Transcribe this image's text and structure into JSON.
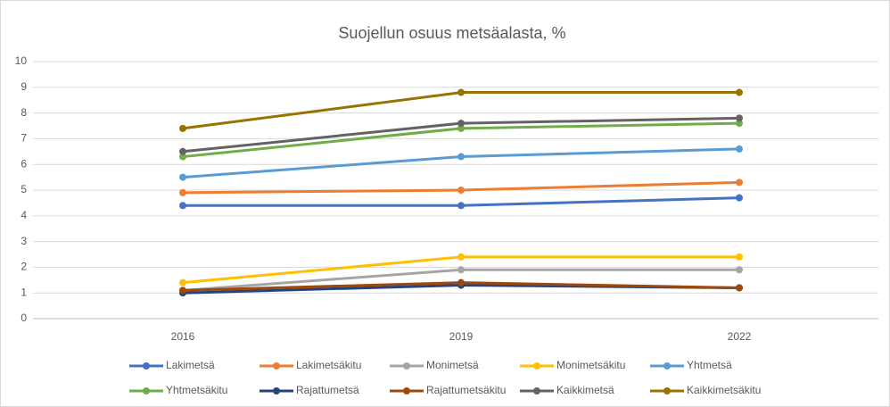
{
  "chart_data": {
    "type": "line",
    "title": "Suojellun osuus metsäalasta, %",
    "categories": [
      "2016",
      "2019",
      "2022"
    ],
    "ylim": [
      0,
      10
    ],
    "yticks": [
      0,
      1,
      2,
      3,
      4,
      5,
      6,
      7,
      8,
      9,
      10
    ],
    "grid": true,
    "legend": "bottom",
    "series": [
      {
        "name": "Lakimetsä",
        "color": "#4472c4",
        "values": [
          4.4,
          4.4,
          4.7
        ]
      },
      {
        "name": "Lakimetsäkitu",
        "color": "#ed7d31",
        "values": [
          4.9,
          5.0,
          5.3
        ]
      },
      {
        "name": "Monimetsä",
        "color": "#a5a5a5",
        "values": [
          1.1,
          1.9,
          1.9
        ]
      },
      {
        "name": "Monimetsäkitu",
        "color": "#ffc000",
        "values": [
          1.4,
          2.4,
          2.4
        ]
      },
      {
        "name": "Yhtmetsä",
        "color": "#5b9bd5",
        "values": [
          5.5,
          6.3,
          6.6
        ]
      },
      {
        "name": "Yhtmetsäkitu",
        "color": "#70ad47",
        "values": [
          6.3,
          7.4,
          7.6
        ]
      },
      {
        "name": "Rajattumetsä",
        "color": "#264478",
        "values": [
          1.0,
          1.3,
          1.2
        ]
      },
      {
        "name": "Rajattumetsäkitu",
        "color": "#9e480e",
        "values": [
          1.1,
          1.4,
          1.2
        ]
      },
      {
        "name": "Kaikkimetsä",
        "color": "#636363",
        "values": [
          6.5,
          7.6,
          7.8
        ]
      },
      {
        "name": "Kaikkimetsäkitu",
        "color": "#997300",
        "values": [
          7.4,
          8.8,
          8.8
        ]
      }
    ]
  }
}
